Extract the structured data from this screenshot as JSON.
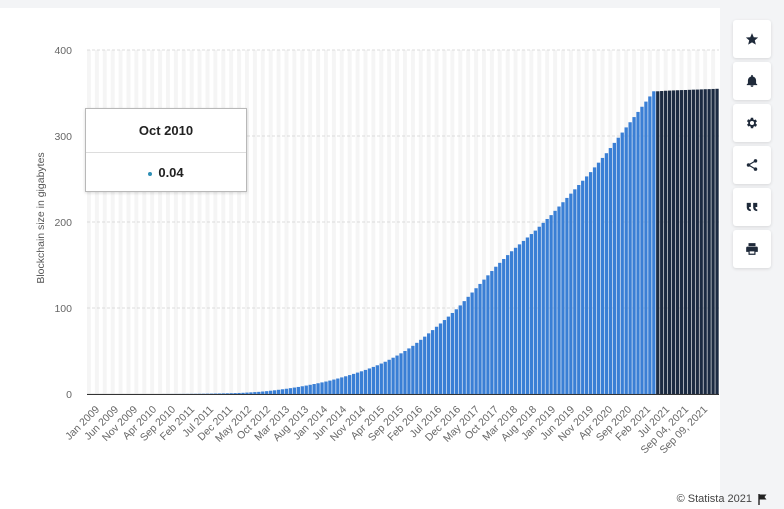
{
  "toolbar": {
    "buttons": [
      {
        "name": "favorite",
        "icon": "star-icon"
      },
      {
        "name": "notify",
        "icon": "bell-icon"
      },
      {
        "name": "settings",
        "icon": "gear-icon"
      },
      {
        "name": "share",
        "icon": "share-icon"
      },
      {
        "name": "cite",
        "icon": "quote-icon"
      },
      {
        "name": "print",
        "icon": "print-icon"
      }
    ]
  },
  "tooltip": {
    "title": "Oct 2010",
    "value": "0.04",
    "dot_color": "#2f8fb5"
  },
  "copyright": "© Statista 2021",
  "chart_data": {
    "type": "bar",
    "title": "",
    "xlabel": "",
    "ylabel": "Blockchain size in gigabytes",
    "ylim": [
      0,
      400
    ],
    "yticks": [
      0,
      100,
      200,
      300,
      400
    ],
    "grid": true,
    "colors": {
      "monthly": "#3a7fd5",
      "daily": "#1c2b42",
      "grid": "#dcdcdc",
      "alt_band": "#f5f5f5"
    },
    "tick_labels": [
      "Jan 2009",
      "Jun 2009",
      "Nov 2009",
      "Apr 2010",
      "Sep 2010",
      "Feb 2011",
      "Jul 2011",
      "Dec 2011",
      "May 2012",
      "Oct 2012",
      "Mar 2013",
      "Aug 2013",
      "Jan 2014",
      "Jun 2014",
      "Nov 2014",
      "Apr 2015",
      "Sep 2015",
      "Feb 2016",
      "Jul 2016",
      "Dec 2016",
      "May 2017",
      "Oct 2017",
      "Mar 2018",
      "Aug 2018",
      "Jan 2019",
      "Jun 2019",
      "Nov 2019",
      "Apr 2020",
      "Sep 2020",
      "Feb 2021",
      "Jul 2021",
      "Sep 04, 2021",
      "Sep 09, 2021"
    ],
    "series": [
      {
        "type": "monthly",
        "values": [
          0,
          0,
          0,
          0,
          0,
          0,
          0,
          0,
          0,
          0,
          0,
          0,
          0,
          0,
          0,
          0,
          0,
          0,
          0,
          0.04,
          0.05,
          0.06,
          0.08,
          0.1,
          0.12,
          0.15,
          0.18,
          0.22,
          0.27,
          0.33,
          0.4,
          0.48,
          0.56,
          0.65,
          0.75,
          0.85,
          0.95,
          1.05,
          1.2,
          1.4,
          1.65,
          1.9,
          2.2,
          2.5,
          2.9,
          3.3,
          3.8,
          4.3,
          4.9,
          5.5,
          6.1,
          6.8,
          7.5,
          8.2,
          9,
          9.8,
          10.7,
          11.6,
          12.5,
          13.5,
          14.5,
          15.6,
          16.8,
          18,
          19.3,
          20.6,
          22,
          23.4,
          24.9,
          26.4,
          28,
          29.7,
          31.5,
          33.4,
          35.4,
          37.5,
          39.8,
          42.2,
          44.7,
          47.3,
          50,
          53,
          56,
          59.5,
          63,
          66.7,
          70.5,
          74.3,
          78.2,
          82,
          86,
          90,
          94.2,
          98.5,
          103,
          108,
          113,
          118,
          123,
          128,
          133,
          138,
          143,
          148,
          152.5,
          157,
          161.5,
          166,
          170,
          174,
          178,
          182,
          186,
          190,
          194.5,
          199,
          203.5,
          208,
          213,
          218,
          223,
          228,
          233,
          238,
          243,
          248,
          253,
          258,
          263.5,
          269,
          274.5,
          280,
          286,
          292,
          298,
          304,
          310,
          316,
          322,
          328,
          334,
          340,
          346,
          352
        ],
        "color": "#3a7fd5"
      },
      {
        "type": "daily",
        "values": [
          352,
          352.3,
          352.6,
          352.8,
          353,
          353.2,
          353.4,
          353.5,
          353.7,
          353.9,
          354,
          354.2,
          354.4,
          354.5,
          354.7,
          354.9
        ],
        "color": "#1c2b42"
      }
    ]
  }
}
